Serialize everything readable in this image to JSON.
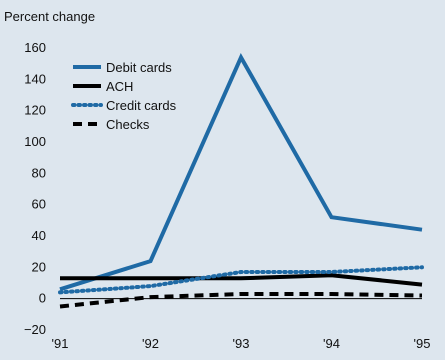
{
  "chart_data": {
    "type": "line",
    "title": "",
    "ylabel": "Percent change",
    "xlabel": "",
    "categories": [
      "'91",
      "'92",
      "'93",
      "'94",
      "'95"
    ],
    "ylim": [
      -20,
      160
    ],
    "yticks": [
      -20,
      0,
      20,
      40,
      60,
      80,
      100,
      120,
      140,
      160
    ],
    "legend_position": "top-left",
    "grid": false,
    "series": [
      {
        "name": "Debit cards",
        "values": [
          6,
          24,
          154,
          52,
          44
        ],
        "color": "#1f6aa5",
        "style": "solid"
      },
      {
        "name": "ACH",
        "values": [
          13,
          13,
          13,
          15,
          9
        ],
        "color": "#000000",
        "style": "solid"
      },
      {
        "name": "Credit cards",
        "values": [
          4,
          8,
          17,
          17,
          20
        ],
        "color": "#1f6aa5",
        "style": "dotted"
      },
      {
        "name": "Checks",
        "values": [
          -5,
          1,
          3,
          3,
          2
        ],
        "color": "#000000",
        "style": "dashed"
      }
    ]
  }
}
